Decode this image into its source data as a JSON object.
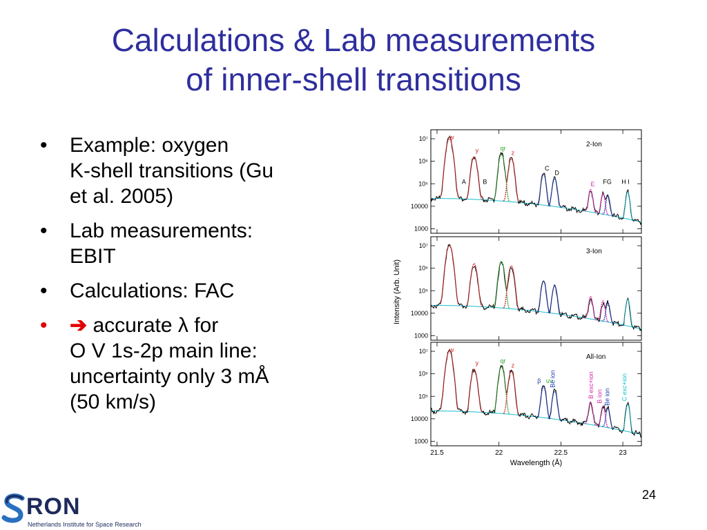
{
  "slide": {
    "title_line1": "Calculations & Lab measurements",
    "title_line2": "of inner-shell transitions",
    "slide_number": "24"
  },
  "bullets": [
    {
      "lines": [
        "Example: oxygen",
        "K-shell transitions (Gu",
        "et al. 2005)"
      ]
    },
    {
      "lines": [
        "Lab measurements:",
        "EBIT"
      ]
    },
    {
      "lines": [
        "Calculations: FAC"
      ]
    },
    {
      "arrow": "➔",
      "lines": [
        "accurate λ for",
        "O V 1s-2p main line:",
        "uncertainty only 3 mÅ",
        "(50 km/s)"
      ]
    }
  ],
  "logo": {
    "wordmark": "RON",
    "subtitle": "Netherlands Institute for Space Research"
  },
  "chart_data": {
    "type": "line",
    "xlabel": "Wavelength (Å)",
    "ylabel": "Intensity (Arb. Unit)",
    "xlim": [
      21.45,
      23.15
    ],
    "ylog": true,
    "x_ticks": [
      "21.5",
      "22",
      "22.5",
      "23"
    ],
    "y_ticks": [
      "10⁷",
      "10⁶",
      "10⁵",
      "10000",
      "1000"
    ],
    "panels": [
      {
        "label": "2-Ion",
        "line_labels": [
          {
            "text": "w",
            "x": 21.6,
            "color": "#d62728"
          },
          {
            "text": "y",
            "x": 21.81,
            "color": "#d62728"
          },
          {
            "text": "qr",
            "x": 22.01,
            "color": "#2ca02c"
          },
          {
            "text": "z",
            "x": 22.1,
            "color": "#d62728"
          },
          {
            "text": "A",
            "x": 21.7,
            "color": "#000000"
          },
          {
            "text": "B",
            "x": 21.87,
            "color": "#000000"
          },
          {
            "text": "C",
            "x": 22.37,
            "color": "#000000"
          },
          {
            "text": "D",
            "x": 22.45,
            "color": "#000000"
          },
          {
            "text": "E",
            "x": 22.74,
            "color": "#d62aa8"
          },
          {
            "text": "FG",
            "x": 22.84,
            "color": "#000000"
          },
          {
            "text": "H",
            "x": 22.99,
            "color": "#000000"
          },
          {
            "text": "I",
            "x": 23.04,
            "color": "#000000"
          }
        ]
      },
      {
        "label": "3-Ion",
        "line_labels": []
      },
      {
        "label": "All-Ion",
        "line_labels": [
          {
            "text": "w",
            "x": 21.6,
            "color": "#d62728"
          },
          {
            "text": "y",
            "x": 21.81,
            "color": "#d62728"
          },
          {
            "text": "qr",
            "x": 22.01,
            "color": "#2ca02c"
          },
          {
            "text": "z",
            "x": 22.1,
            "color": "#d62728"
          },
          {
            "text": "β",
            "x": 22.31,
            "color": "#1f3fb4"
          },
          {
            "text": "uv",
            "x": 22.38,
            "color": "#2ca02c"
          },
          {
            "text": "Be ion",
            "x": 22.45,
            "color": "#1f3fb4"
          },
          {
            "text": "B exc+ion",
            "x": 22.76,
            "color": "#d62aa8"
          },
          {
            "text": "B ion",
            "x": 22.83,
            "color": "#d62aa8"
          },
          {
            "text": "Be ion",
            "x": 22.89,
            "color": "#1f3fb4"
          },
          {
            "text": "C exc+ion",
            "x": 23.03,
            "color": "#17becf"
          }
        ]
      }
    ],
    "peaks": [
      {
        "x": 21.6,
        "logI": 7.0,
        "w": 0.018,
        "color": "#d62728"
      },
      {
        "x": 21.8,
        "logI": 6.2,
        "w": 0.016,
        "color": "#d62728"
      },
      {
        "x": 22.02,
        "logI": 6.3,
        "w": 0.016,
        "color": "#2ca02c"
      },
      {
        "x": 22.1,
        "logI": 6.1,
        "w": 0.016,
        "color": "#d62728"
      },
      {
        "x": 22.36,
        "logI": 5.4,
        "w": 0.014,
        "color": "#1f3fb4"
      },
      {
        "x": 22.45,
        "logI": 5.2,
        "w": 0.014,
        "color": "#1f3fb4"
      },
      {
        "x": 22.74,
        "logI": 4.7,
        "w": 0.012,
        "color": "#d62aa8"
      },
      {
        "x": 22.84,
        "logI": 4.5,
        "w": 0.012,
        "color": "#d62aa8"
      },
      {
        "x": 22.88,
        "logI": 4.4,
        "w": 0.012,
        "color": "#1f3fb4"
      },
      {
        "x": 23.04,
        "logI": 4.6,
        "w": 0.012,
        "color": "#17becf"
      }
    ],
    "series_colors": {
      "data": "#000000",
      "continuum": "#17becf"
    }
  }
}
